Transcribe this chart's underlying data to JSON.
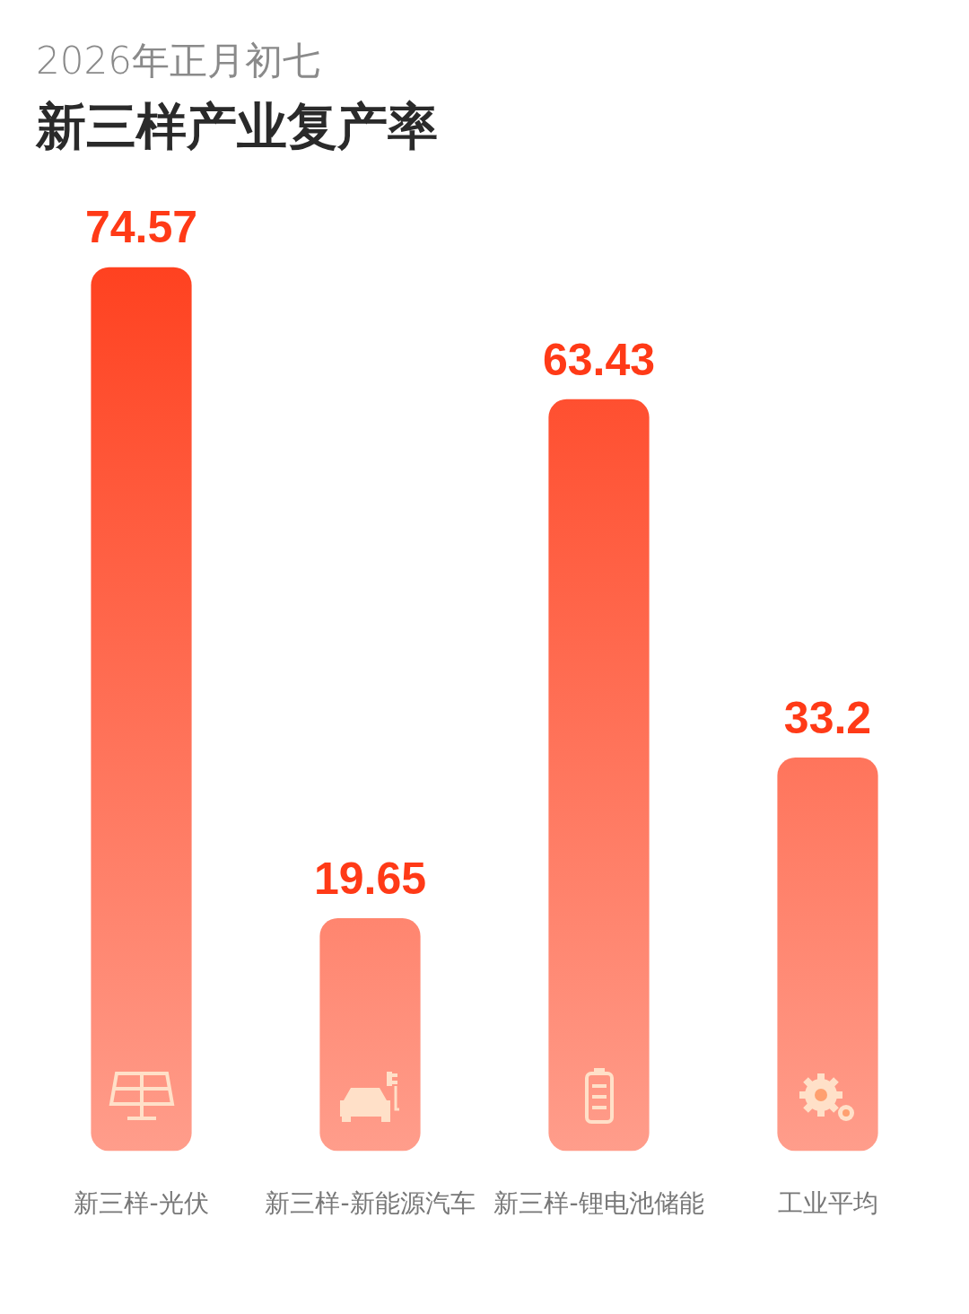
{
  "chart_data": {
    "type": "bar",
    "subtitle": "2026年正月初七",
    "title": "新三样产业复产率",
    "categories": [
      "新三样-光伏",
      "新三样-新能源汽车",
      "新三样-锂电池储能",
      "工业平均"
    ],
    "values": [
      74.57,
      19.65,
      63.43,
      33.2
    ],
    "color": "#ff3a17",
    "data_labels": true,
    "grid": false,
    "legend": false
  }
}
